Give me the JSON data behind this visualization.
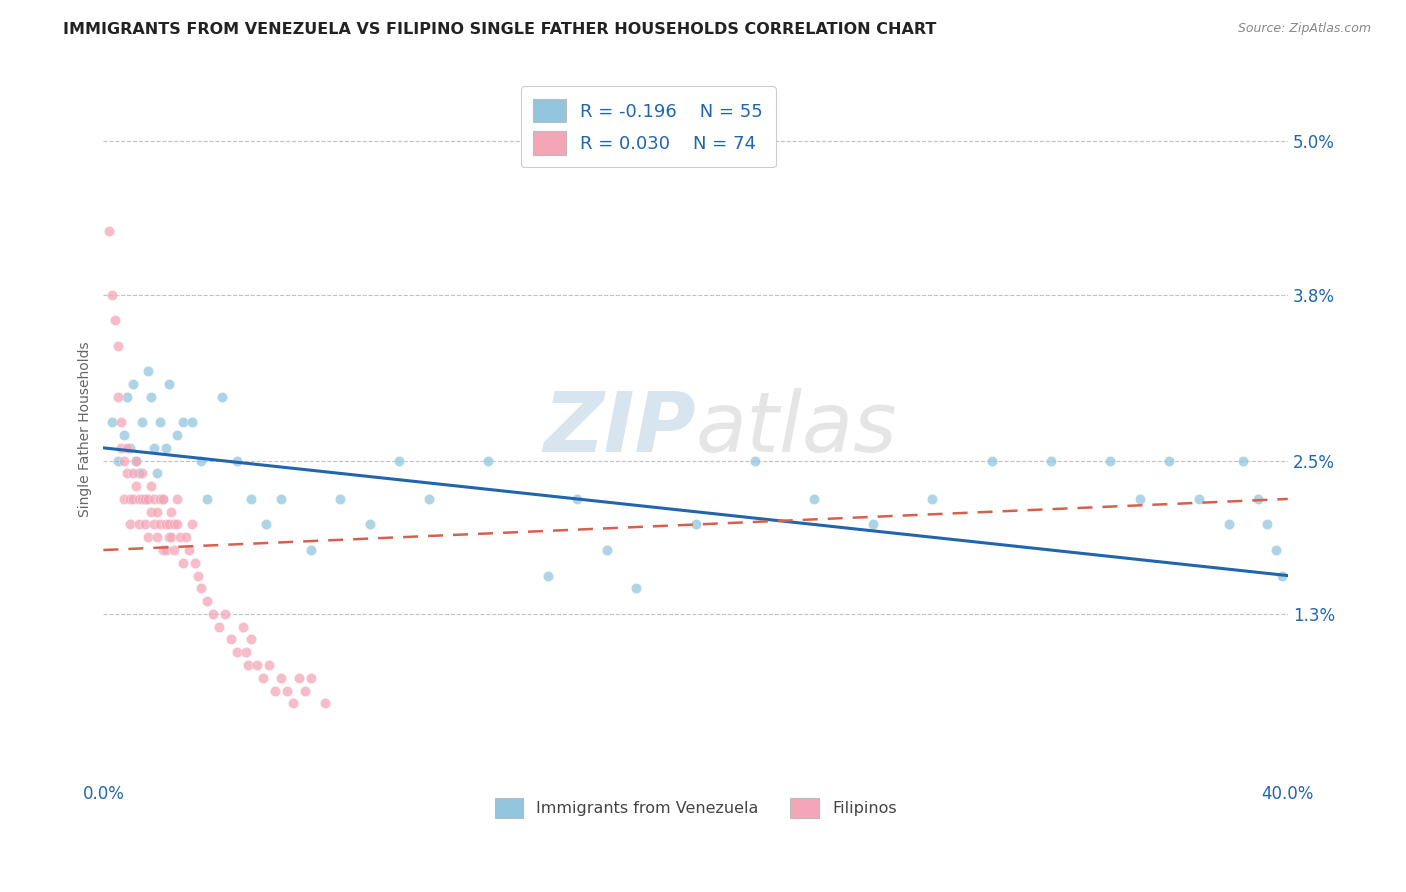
{
  "title": "IMMIGRANTS FROM VENEZUELA VS FILIPINO SINGLE FATHER HOUSEHOLDS CORRELATION CHART",
  "source": "Source: ZipAtlas.com",
  "ylabel": "Single Father Households",
  "xlim": [
    0.0,
    0.4
  ],
  "ylim": [
    0.0,
    0.055
  ],
  "yticks": [
    0.013,
    0.025,
    0.038,
    0.05
  ],
  "ytick_labels": [
    "1.3%",
    "2.5%",
    "3.8%",
    "5.0%"
  ],
  "xticks": [
    0.0,
    0.4
  ],
  "xtick_labels": [
    "0.0%",
    "40.0%"
  ],
  "legend_r1": "R = -0.196",
  "legend_n1": "N = 55",
  "legend_r2": "R = 0.030",
  "legend_n2": "N = 74",
  "color_blue": "#92c5de",
  "color_pink": "#f4a6b8",
  "color_blue_line": "#2166ac",
  "color_pink_line": "#d6604d",
  "color_text_blue": "#2166ac",
  "background_color": "#ffffff",
  "grid_color": "#bbbbbb",
  "watermark": "ZIPatlas",
  "title_fontsize": 11.5,
  "axis_label_fontsize": 10,
  "tick_fontsize": 12,
  "ven_x": [
    0.003,
    0.005,
    0.007,
    0.008,
    0.009,
    0.01,
    0.011,
    0.012,
    0.013,
    0.014,
    0.015,
    0.016,
    0.017,
    0.018,
    0.019,
    0.02,
    0.021,
    0.022,
    0.025,
    0.027,
    0.03,
    0.033,
    0.035,
    0.04,
    0.045,
    0.05,
    0.055,
    0.06,
    0.07,
    0.08,
    0.09,
    0.1,
    0.11,
    0.13,
    0.15,
    0.16,
    0.17,
    0.18,
    0.2,
    0.22,
    0.24,
    0.26,
    0.28,
    0.3,
    0.32,
    0.34,
    0.35,
    0.36,
    0.37,
    0.38,
    0.385,
    0.39,
    0.393,
    0.396,
    0.398
  ],
  "ven_y": [
    0.028,
    0.025,
    0.027,
    0.03,
    0.026,
    0.031,
    0.025,
    0.024,
    0.028,
    0.022,
    0.032,
    0.03,
    0.026,
    0.024,
    0.028,
    0.022,
    0.026,
    0.031,
    0.027,
    0.028,
    0.028,
    0.025,
    0.022,
    0.03,
    0.025,
    0.022,
    0.02,
    0.022,
    0.018,
    0.022,
    0.02,
    0.025,
    0.022,
    0.025,
    0.016,
    0.022,
    0.018,
    0.015,
    0.02,
    0.025,
    0.022,
    0.02,
    0.022,
    0.025,
    0.025,
    0.025,
    0.022,
    0.025,
    0.022,
    0.02,
    0.025,
    0.022,
    0.02,
    0.018,
    0.016
  ],
  "fil_x": [
    0.002,
    0.003,
    0.004,
    0.005,
    0.005,
    0.006,
    0.006,
    0.007,
    0.007,
    0.008,
    0.008,
    0.009,
    0.009,
    0.01,
    0.01,
    0.011,
    0.011,
    0.012,
    0.012,
    0.013,
    0.013,
    0.014,
    0.014,
    0.015,
    0.015,
    0.016,
    0.016,
    0.017,
    0.017,
    0.018,
    0.018,
    0.019,
    0.019,
    0.02,
    0.02,
    0.021,
    0.021,
    0.022,
    0.022,
    0.023,
    0.023,
    0.024,
    0.024,
    0.025,
    0.025,
    0.026,
    0.027,
    0.028,
    0.029,
    0.03,
    0.031,
    0.032,
    0.033,
    0.035,
    0.037,
    0.039,
    0.041,
    0.043,
    0.045,
    0.047,
    0.048,
    0.049,
    0.05,
    0.052,
    0.054,
    0.056,
    0.058,
    0.06,
    0.062,
    0.064,
    0.066,
    0.068,
    0.07,
    0.075
  ],
  "fil_y": [
    0.043,
    0.038,
    0.036,
    0.034,
    0.03,
    0.028,
    0.026,
    0.025,
    0.022,
    0.024,
    0.026,
    0.022,
    0.02,
    0.024,
    0.022,
    0.025,
    0.023,
    0.022,
    0.02,
    0.022,
    0.024,
    0.022,
    0.02,
    0.022,
    0.019,
    0.021,
    0.023,
    0.022,
    0.02,
    0.021,
    0.019,
    0.022,
    0.02,
    0.022,
    0.018,
    0.02,
    0.018,
    0.02,
    0.019,
    0.021,
    0.019,
    0.02,
    0.018,
    0.022,
    0.02,
    0.019,
    0.017,
    0.019,
    0.018,
    0.02,
    0.017,
    0.016,
    0.015,
    0.014,
    0.013,
    0.012,
    0.013,
    0.011,
    0.01,
    0.012,
    0.01,
    0.009,
    0.011,
    0.009,
    0.008,
    0.009,
    0.007,
    0.008,
    0.007,
    0.006,
    0.008,
    0.007,
    0.008,
    0.006
  ],
  "ven_line_x": [
    0.0,
    0.4
  ],
  "ven_line_y": [
    0.026,
    0.016
  ],
  "fil_line_x": [
    0.0,
    0.4
  ],
  "fil_line_y": [
    0.018,
    0.022
  ]
}
